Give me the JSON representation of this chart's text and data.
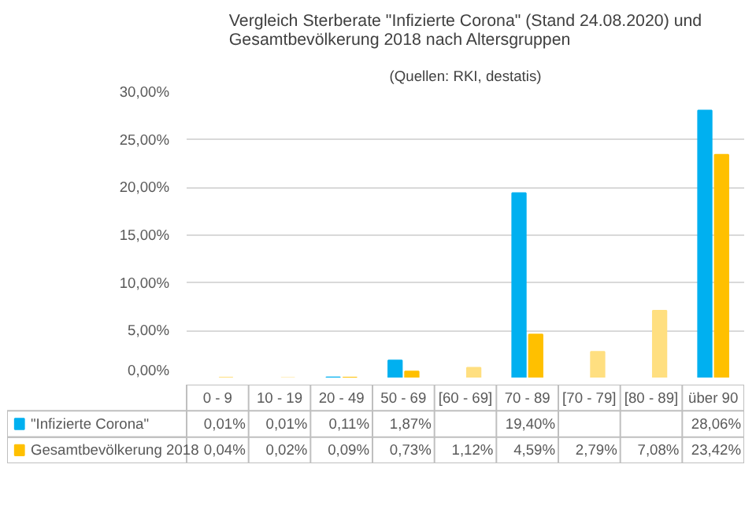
{
  "chart_data": {
    "type": "bar",
    "title": "Vergleich Sterberate \"Infizierte Corona\" (Stand 24.08.2020) und\nGesamtbevölkerung 2018 nach Altersgruppen",
    "subtitle": "(Quellen: RKI, destatis)",
    "categories": [
      "0 - 9",
      "10 - 19",
      "20 - 49",
      "50 - 69",
      "[60 - 69]",
      "70 - 89",
      "[70 - 79]",
      "[80 - 89]",
      "über 90"
    ],
    "series": [
      {
        "name": "\"Infizierte Corona\"",
        "color": "#00b0f0",
        "values": [
          0.01,
          0.01,
          0.11,
          1.87,
          null,
          19.4,
          null,
          null,
          28.06
        ],
        "value_labels": [
          "0,01%",
          "0,01%",
          "0,11%",
          "1,87%",
          null,
          "19,40%",
          null,
          null,
          "28,06%"
        ]
      },
      {
        "name": "Gesamtbevölkerung 2018",
        "color": "#ffc000",
        "colors": [
          "#ffc000",
          "#ffc000",
          "#ffc000",
          "#ffc000",
          "#ffdf80",
          "#ffc000",
          "#ffdf80",
          "#ffdf80",
          "#ffc000"
        ],
        "values": [
          0.04,
          0.02,
          0.09,
          0.73,
          1.12,
          4.59,
          2.79,
          7.08,
          23.42
        ],
        "value_labels": [
          "0,04%",
          "0,02%",
          "0,09%",
          "0,73%",
          "1,12%",
          "4,59%",
          "2,79%",
          "7,08%",
          "23,42%"
        ]
      }
    ],
    "ylim": [
      0,
      30
    ],
    "yticks": [
      {
        "value": 0,
        "label": "0,00%"
      },
      {
        "value": 5,
        "label": "5,00%"
      },
      {
        "value": 10,
        "label": "10,00%"
      },
      {
        "value": 15,
        "label": "15,00%"
      },
      {
        "value": 20,
        "label": "20,00%"
      },
      {
        "value": 25,
        "label": "25,00%"
      },
      {
        "value": 30,
        "label": "30,00%"
      }
    ],
    "grid": "y",
    "legend": "bottom"
  }
}
